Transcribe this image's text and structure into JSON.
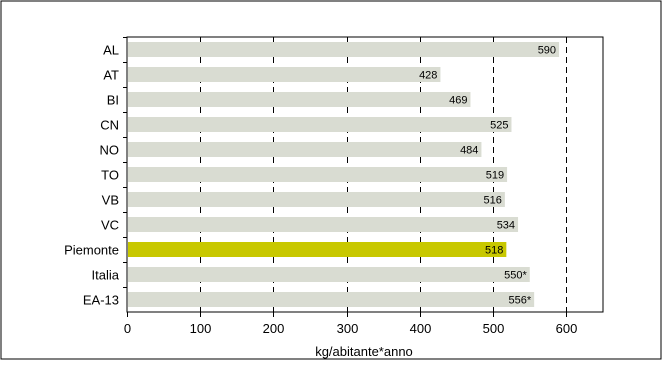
{
  "chart_data": {
    "type": "bar",
    "orientation": "horizontal",
    "categories": [
      "AL",
      "AT",
      "BI",
      "CN",
      "NO",
      "TO",
      "VB",
      "VC",
      "Piemonte",
      "Italia",
      "EA-13"
    ],
    "values": [
      590,
      428,
      469,
      525,
      484,
      519,
      516,
      534,
      518,
      550,
      556
    ],
    "value_labels": [
      "590",
      "428",
      "469",
      "525",
      "484",
      "519",
      "516",
      "534",
      "518",
      "550*",
      "556*"
    ],
    "xlabel": "kg/abitante*anno",
    "xlim": [
      0,
      650
    ],
    "xticks": [
      0,
      100,
      200,
      300,
      400,
      500,
      600
    ],
    "grid": "vertical-dashed",
    "bar_color": "#d9dcd2",
    "highlight_category": "Piemonte",
    "highlight_color": "#c8c800",
    "gridline_color": "#000000"
  }
}
